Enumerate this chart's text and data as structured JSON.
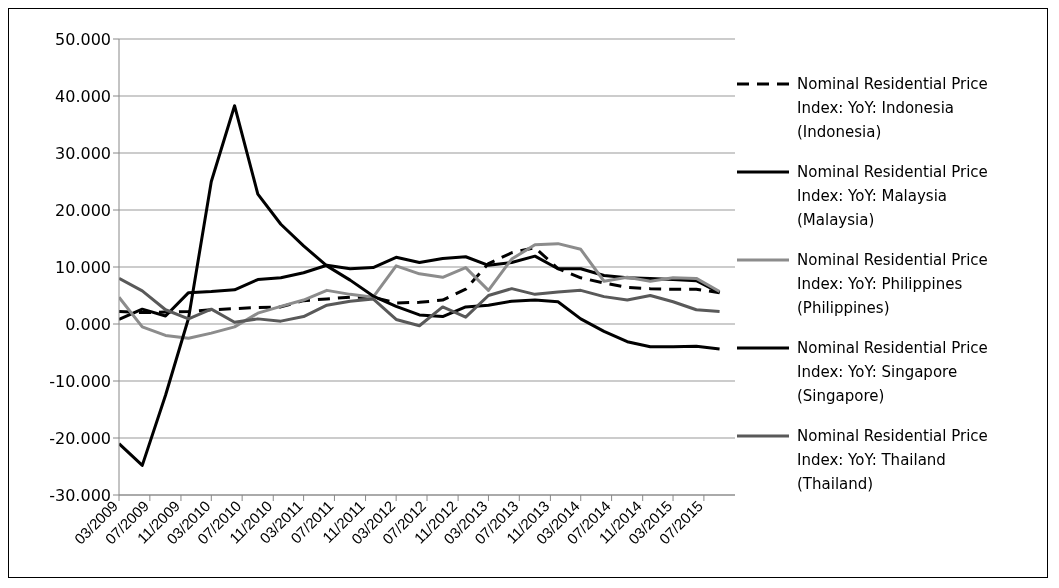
{
  "chart_data": {
    "type": "line",
    "x": [
      "2009-03",
      "2009-06",
      "2009-09",
      "2009-12",
      "2010-03",
      "2010-06",
      "2010-09",
      "2010-12",
      "2011-03",
      "2011-06",
      "2011-09",
      "2011-12",
      "2012-03",
      "2012-06",
      "2012-09",
      "2012-12",
      "2013-03",
      "2013-06",
      "2013-09",
      "2013-12",
      "2014-03",
      "2014-06",
      "2014-09",
      "2014-12",
      "2015-03",
      "2015-06",
      "2015-09"
    ],
    "series": [
      {
        "name": "Nominal Residential Price Index: YoY: Indonesia (Indonesia)",
        "color": "#000000",
        "line_style": "dashed",
        "values": [
          2.2,
          2.0,
          2.1,
          2.2,
          2.5,
          2.7,
          2.9,
          3.0,
          4.1,
          4.4,
          4.7,
          4.7,
          3.7,
          3.8,
          4.2,
          6.1,
          10.6,
          12.5,
          13.4,
          9.7,
          8.1,
          7.2,
          6.4,
          6.2,
          6.1,
          6.1,
          5.5
        ]
      },
      {
        "name": "Nominal Residential Price Index: YoY: Malaysia (Malaysia)",
        "color": "#000000",
        "line_style": "solid",
        "values": [
          0.8,
          2.6,
          1.4,
          5.5,
          5.7,
          6.0,
          7.8,
          8.1,
          9.0,
          10.3,
          9.7,
          9.9,
          11.7,
          10.8,
          11.5,
          11.8,
          10.3,
          10.8,
          11.9,
          9.7,
          9.7,
          8.5,
          8.1,
          8.0,
          7.8,
          7.6,
          5.5
        ]
      },
      {
        "name": "Nominal Residential Price Index: YoY: Philippines (Philippines)",
        "color": "#8c8c8c",
        "line_style": "solid",
        "values": [
          4.7,
          -0.5,
          -2.0,
          -2.5,
          -1.6,
          -0.5,
          1.9,
          3.1,
          4.2,
          5.9,
          5.2,
          4.7,
          10.2,
          8.8,
          8.2,
          9.9,
          5.9,
          11.4,
          13.9,
          14.1,
          13.1,
          7.5,
          8.2,
          7.5,
          8.1,
          8.0,
          5.7
        ]
      },
      {
        "name": "Nominal Residential Price Index: YoY: Singapore (Singapore)",
        "color": "#000000",
        "line_style": "solid",
        "values": [
          -21.0,
          -24.8,
          -12.5,
          1.0,
          25.0,
          38.3,
          22.8,
          17.5,
          13.7,
          10.2,
          7.7,
          4.9,
          3.1,
          1.6,
          1.3,
          3.0,
          3.3,
          4.0,
          4.2,
          3.9,
          0.9,
          -1.3,
          -3.1,
          -4.0,
          -4.0,
          -3.9,
          -4.4
        ]
      },
      {
        "name": "Nominal Residential Price Index: YoY: Thailand (Thailand)",
        "color": "#595959",
        "line_style": "solid",
        "values": [
          8.0,
          5.8,
          2.5,
          0.9,
          2.6,
          0.3,
          0.9,
          0.5,
          1.3,
          3.3,
          4.0,
          4.4,
          0.8,
          -0.3,
          3.0,
          1.2,
          5.0,
          6.2,
          5.2,
          5.6,
          5.9,
          4.8,
          4.2,
          5.0,
          3.9,
          2.5,
          2.2
        ]
      }
    ],
    "xlim": [
      "2009-03",
      "2015-11"
    ],
    "xticks": [
      {
        "value": "2009-03",
        "label": "03/2009"
      },
      {
        "value": "2009-07",
        "label": "07/2009"
      },
      {
        "value": "2009-11",
        "label": "11/2009"
      },
      {
        "value": "2010-03",
        "label": "03/2010"
      },
      {
        "value": "2010-07",
        "label": "07/2010"
      },
      {
        "value": "2010-11",
        "label": "11/2010"
      },
      {
        "value": "2011-03",
        "label": "03/2011"
      },
      {
        "value": "2011-07",
        "label": "07/2011"
      },
      {
        "value": "2011-11",
        "label": "11/2011"
      },
      {
        "value": "2012-03",
        "label": "03/2012"
      },
      {
        "value": "2012-07",
        "label": "07/2012"
      },
      {
        "value": "2012-11",
        "label": "11/2012"
      },
      {
        "value": "2013-03",
        "label": "03/2013"
      },
      {
        "value": "2013-07",
        "label": "07/2013"
      },
      {
        "value": "2013-11",
        "label": "11/2013"
      },
      {
        "value": "2014-03",
        "label": "03/2014"
      },
      {
        "value": "2014-07",
        "label": "07/2014"
      },
      {
        "value": "2014-11",
        "label": "11/2014"
      },
      {
        "value": "2015-03",
        "label": "03/2015"
      },
      {
        "value": "2015-07",
        "label": "07/2015"
      }
    ],
    "ylim": [
      -30,
      50
    ],
    "yticks": [
      {
        "value": -30,
        "label": "-30.000"
      },
      {
        "value": -20,
        "label": "-20.000"
      },
      {
        "value": -10,
        "label": "-10.000"
      },
      {
        "value": 0,
        "label": "0.000"
      },
      {
        "value": 10,
        "label": "10.000"
      },
      {
        "value": 20,
        "label": "20.000"
      },
      {
        "value": 30,
        "label": "30.000"
      },
      {
        "value": 40,
        "label": "40.000"
      },
      {
        "value": 50,
        "label": "50.000"
      }
    ],
    "grid": "y",
    "legend": "right",
    "marker": "none"
  }
}
